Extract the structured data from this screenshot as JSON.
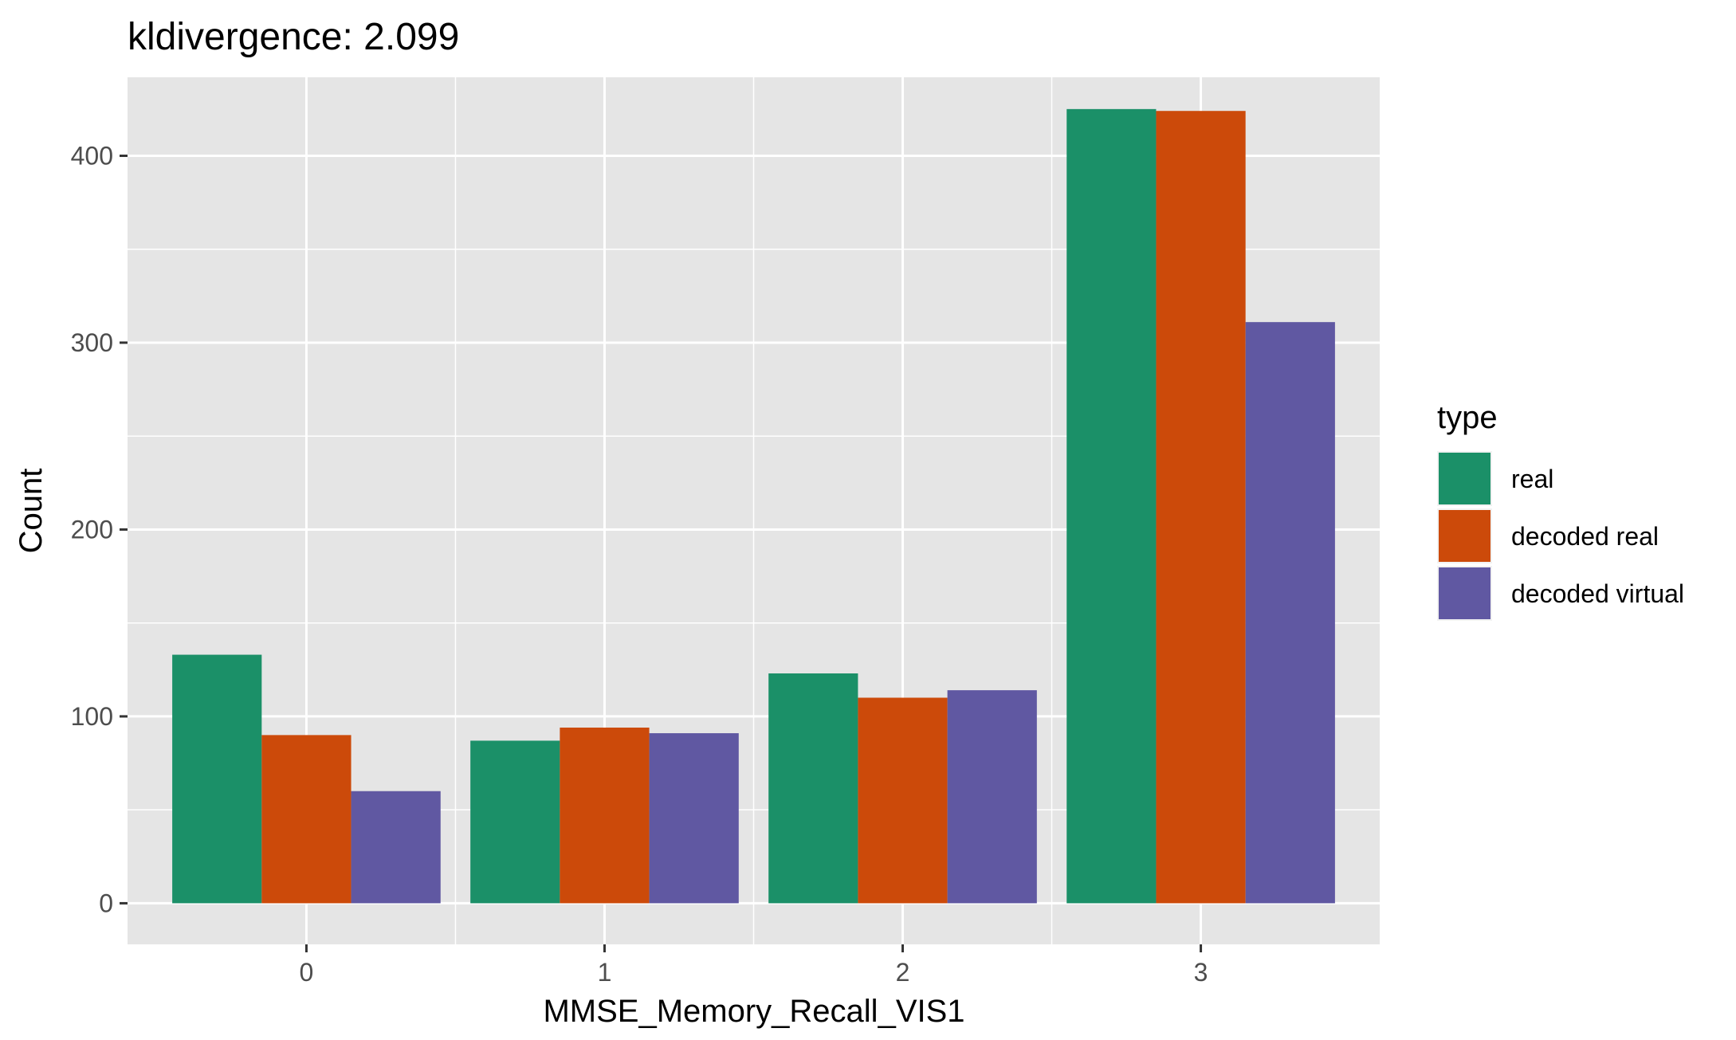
{
  "chart_data": {
    "type": "bar",
    "title": "kldivergence: 2.099",
    "xlabel": "MMSE_Memory_Recall_VIS1",
    "ylabel": "Count",
    "categories": [
      "0",
      "1",
      "2",
      "3"
    ],
    "ylim": [
      -22,
      442
    ],
    "yticks": [
      0,
      100,
      200,
      300,
      400
    ],
    "grid": true,
    "legend": {
      "title": "type",
      "position": "right"
    },
    "series": [
      {
        "name": "real",
        "color": "#1b9068",
        "values": [
          133,
          87,
          123,
          425
        ]
      },
      {
        "name": "decoded real",
        "color": "#cc4a0a",
        "values": [
          90,
          94,
          110,
          424
        ]
      },
      {
        "name": "decoded virtual",
        "color": "#6058a2",
        "values": [
          60,
          91,
          114,
          311
        ]
      }
    ]
  }
}
